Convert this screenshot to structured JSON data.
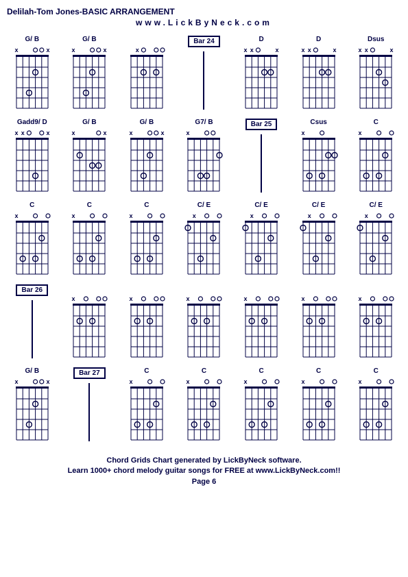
{
  "title": "Delilah-Tom Jones-BASIC ARRANGEMENT",
  "subtitle": "www.LickByNeck.com",
  "footer": {
    "line1": "Chord Grids Chart generated by LickByNeck software.",
    "line2": "Learn 1000+ chord melody guitar songs for FREE at www.LickByNeck.com!!",
    "line3": "Page 6"
  },
  "colors": {
    "ink": "#000044",
    "bg": "#ffffff"
  },
  "diagram": {
    "frets": 5,
    "strings": 6,
    "width": 58,
    "height": 95,
    "nut_height": 14,
    "dot_radius": 4
  },
  "cells": [
    {
      "type": "chord",
      "name": "G/ B",
      "markers": [
        "x",
        "",
        "",
        "o",
        "o",
        "x"
      ],
      "dots": [
        [
          1,
          3
        ],
        [
          3,
          2
        ]
      ]
    },
    {
      "type": "chord",
      "name": "G/ B",
      "markers": [
        "x",
        "",
        "",
        "o",
        "o",
        "x"
      ],
      "dots": [
        [
          1,
          3
        ],
        [
          3,
          2
        ]
      ]
    },
    {
      "type": "chord",
      "name": "",
      "markers": [
        "",
        "x",
        "o",
        "",
        "o",
        "o"
      ],
      "dots": [
        [
          1,
          2
        ],
        [
          1,
          4
        ]
      ]
    },
    {
      "type": "bar",
      "label": "Bar 24"
    },
    {
      "type": "chord",
      "name": "D",
      "markers": [
        "x",
        "x",
        "o",
        "",
        "",
        "x"
      ],
      "dots": [
        [
          1,
          3
        ],
        [
          1,
          4
        ]
      ]
    },
    {
      "type": "chord",
      "name": "D",
      "markers": [
        "x",
        "x",
        "o",
        "",
        "",
        "x"
      ],
      "dots": [
        [
          1,
          3
        ],
        [
          1,
          4
        ]
      ]
    },
    {
      "type": "chord",
      "name": "Dsus",
      "markers": [
        "x",
        "x",
        "o",
        "",
        "",
        "x"
      ],
      "dots": [
        [
          1,
          3
        ],
        [
          2,
          4
        ]
      ]
    },
    {
      "type": "chord",
      "name": "Gadd9/ D",
      "markers": [
        "x",
        "x",
        "o",
        "",
        "o",
        "x"
      ],
      "dots": [
        [
          3,
          3
        ]
      ]
    },
    {
      "type": "chord",
      "name": "G/ B",
      "markers": [
        "x",
        "",
        "",
        "",
        "o",
        "x"
      ],
      "dots": [
        [
          1,
          1
        ],
        [
          2,
          3
        ],
        [
          2,
          4
        ]
      ]
    },
    {
      "type": "chord",
      "name": "G/ B",
      "markers": [
        "x",
        "",
        "",
        "o",
        "o",
        "x"
      ],
      "dots": [
        [
          1,
          3
        ],
        [
          3,
          2
        ]
      ]
    },
    {
      "type": "chord",
      "name": "G7/ B",
      "markers": [
        "x",
        "",
        "",
        "o",
        "o",
        ""
      ],
      "dots": [
        [
          1,
          5
        ],
        [
          3,
          2
        ],
        [
          3,
          3
        ]
      ]
    },
    {
      "type": "bar",
      "label": "Bar 25"
    },
    {
      "type": "chord",
      "name": "Csus",
      "markers": [
        "x",
        "",
        "",
        "o",
        "",
        ""
      ],
      "dots": [
        [
          1,
          4
        ],
        [
          1,
          5
        ],
        [
          3,
          1
        ],
        [
          3,
          3
        ]
      ]
    },
    {
      "type": "chord",
      "name": "C",
      "markers": [
        "x",
        "",
        "",
        "o",
        "",
        "o"
      ],
      "dots": [
        [
          1,
          4
        ],
        [
          3,
          1
        ],
        [
          3,
          3
        ]
      ]
    },
    {
      "type": "chord",
      "name": "C",
      "markers": [
        "x",
        "",
        "",
        "o",
        "",
        "o"
      ],
      "dots": [
        [
          1,
          4
        ],
        [
          3,
          1
        ],
        [
          3,
          3
        ]
      ]
    },
    {
      "type": "chord",
      "name": "C",
      "markers": [
        "x",
        "",
        "",
        "o",
        "",
        "o"
      ],
      "dots": [
        [
          1,
          4
        ],
        [
          3,
          1
        ],
        [
          3,
          3
        ]
      ]
    },
    {
      "type": "chord",
      "name": "C",
      "markers": [
        "x",
        "",
        "",
        "o",
        "",
        "o"
      ],
      "dots": [
        [
          1,
          4
        ],
        [
          3,
          1
        ],
        [
          3,
          3
        ]
      ]
    },
    {
      "type": "chord",
      "name": "C/ E",
      "markers": [
        "",
        "x",
        "",
        "o",
        "",
        "o"
      ],
      "dots": [
        [
          0,
          0
        ],
        [
          1,
          4
        ],
        [
          3,
          2
        ]
      ]
    },
    {
      "type": "chord",
      "name": "C/ E",
      "markers": [
        "",
        "x",
        "",
        "o",
        "",
        "o"
      ],
      "dots": [
        [
          0,
          0
        ],
        [
          1,
          4
        ],
        [
          3,
          2
        ]
      ]
    },
    {
      "type": "chord",
      "name": "C/ E",
      "markers": [
        "",
        "x",
        "",
        "o",
        "",
        "o"
      ],
      "dots": [
        [
          0,
          0
        ],
        [
          1,
          4
        ],
        [
          3,
          2
        ]
      ]
    },
    {
      "type": "chord",
      "name": "C/ E",
      "markers": [
        "",
        "x",
        "",
        "o",
        "",
        "o"
      ],
      "dots": [
        [
          0,
          0
        ],
        [
          1,
          4
        ],
        [
          3,
          2
        ]
      ]
    },
    {
      "type": "bar",
      "label": "Bar 26"
    },
    {
      "type": "chord",
      "name": "",
      "markers": [
        "x",
        "",
        "o",
        "",
        "o",
        "o"
      ],
      "dots": [
        [
          1,
          1
        ],
        [
          1,
          3
        ]
      ]
    },
    {
      "type": "chord",
      "name": "",
      "markers": [
        "x",
        "",
        "o",
        "",
        "o",
        "o"
      ],
      "dots": [
        [
          1,
          1
        ],
        [
          1,
          3
        ]
      ]
    },
    {
      "type": "chord",
      "name": "",
      "markers": [
        "x",
        "",
        "o",
        "",
        "o",
        "o"
      ],
      "dots": [
        [
          1,
          1
        ],
        [
          1,
          3
        ]
      ]
    },
    {
      "type": "chord",
      "name": "",
      "markers": [
        "x",
        "",
        "o",
        "",
        "o",
        "o"
      ],
      "dots": [
        [
          1,
          1
        ],
        [
          1,
          3
        ]
      ]
    },
    {
      "type": "chord",
      "name": "",
      "markers": [
        "x",
        "",
        "o",
        "",
        "o",
        "o"
      ],
      "dots": [
        [
          1,
          1
        ],
        [
          1,
          3
        ]
      ]
    },
    {
      "type": "chord",
      "name": "",
      "markers": [
        "x",
        "",
        "o",
        "",
        "o",
        "o"
      ],
      "dots": [
        [
          1,
          1
        ],
        [
          1,
          3
        ]
      ]
    },
    {
      "type": "chord",
      "name": "G/ B",
      "markers": [
        "x",
        "",
        "",
        "o",
        "o",
        "x"
      ],
      "dots": [
        [
          1,
          3
        ],
        [
          3,
          2
        ]
      ]
    },
    {
      "type": "bar",
      "label": "Bar 27"
    },
    {
      "type": "chord",
      "name": "C",
      "markers": [
        "x",
        "",
        "",
        "o",
        "",
        "o"
      ],
      "dots": [
        [
          1,
          4
        ],
        [
          3,
          1
        ],
        [
          3,
          3
        ]
      ]
    },
    {
      "type": "chord",
      "name": "C",
      "markers": [
        "x",
        "",
        "",
        "o",
        "",
        "o"
      ],
      "dots": [
        [
          1,
          4
        ],
        [
          3,
          1
        ],
        [
          3,
          3
        ]
      ]
    },
    {
      "type": "chord",
      "name": "C",
      "markers": [
        "x",
        "",
        "",
        "o",
        "",
        "o"
      ],
      "dots": [
        [
          1,
          4
        ],
        [
          3,
          1
        ],
        [
          3,
          3
        ]
      ]
    },
    {
      "type": "chord",
      "name": "C",
      "markers": [
        "x",
        "",
        "",
        "o",
        "",
        "o"
      ],
      "dots": [
        [
          1,
          4
        ],
        [
          3,
          1
        ],
        [
          3,
          3
        ]
      ]
    },
    {
      "type": "chord",
      "name": "C",
      "markers": [
        "x",
        "",
        "",
        "o",
        "",
        "o"
      ],
      "dots": [
        [
          1,
          4
        ],
        [
          3,
          1
        ],
        [
          3,
          3
        ]
      ]
    }
  ]
}
